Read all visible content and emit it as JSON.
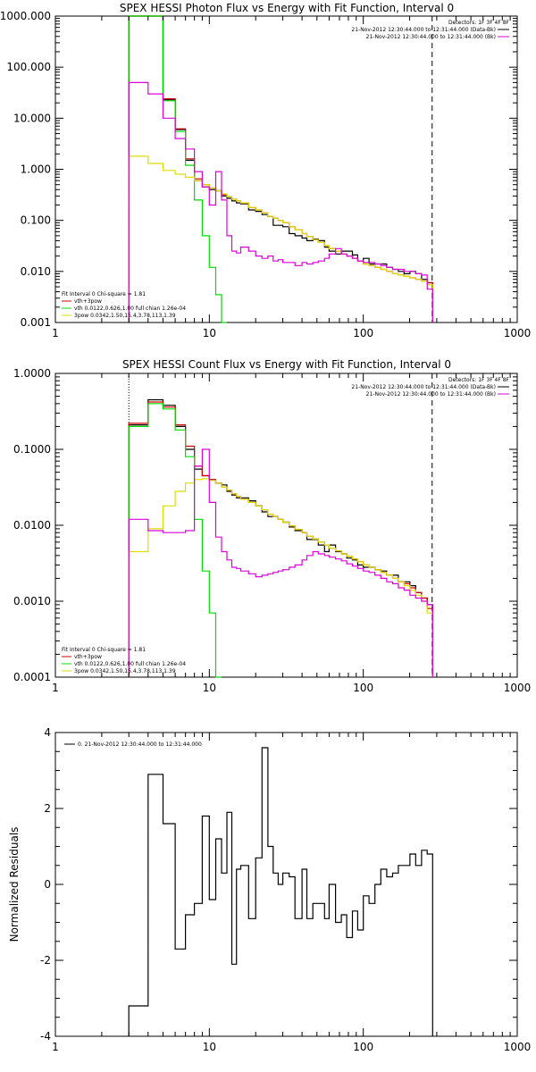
{
  "chart_data": [
    {
      "type": "line",
      "title": "SPEX HESSI Photon Flux vs Energy with Fit Function, Interval 0",
      "xscale": "log",
      "yscale": "log",
      "xlim": [
        1,
        1000
      ],
      "ylim": [
        0.001,
        1000
      ],
      "xticks": [
        "1",
        "10",
        "100",
        "1000"
      ],
      "yticks": [
        "1000.000",
        "100.000",
        "10.000",
        "1.000",
        "0.100",
        "0.010",
        "0.001"
      ],
      "vlines": [
        {
          "x": 3,
          "style": "dotted",
          "color": "#000000"
        },
        {
          "x": 280,
          "style": "dashed",
          "color": "#000000"
        }
      ],
      "legend_top_right": [
        "Detectors: 1F 3F 4F 8F",
        "21-Nov-2012 12:30:44.000 to 12:31:44.000 (Data-Bk)",
        "21-Nov-2012 12:30:44.000 to 12:31:44.000 (Bk)"
      ],
      "legend_bottom_left": [
        "Fit Interval 0   Chi-square = 1.81",
        "vth+3pow",
        "vth 0.0122,0.626,1.00  full chian 1.26e-04",
        "3pow 0.0342,1.50,15.4,3.78,113,1.39"
      ],
      "edges": [
        3,
        4,
        5,
        6,
        7,
        8,
        9,
        10,
        11,
        12,
        13,
        14,
        15,
        16,
        18,
        20,
        22,
        24,
        26,
        28,
        30,
        33,
        36,
        40,
        43,
        47,
        51,
        56,
        60,
        66,
        72,
        78,
        85,
        92,
        100,
        109,
        119,
        130,
        142,
        155,
        169,
        184,
        201,
        219,
        239,
        260,
        282
      ],
      "series": [
        {
          "name": "Data-Bk",
          "color": "#000000",
          "values": [
            1000,
            1000,
            23,
            6,
            1.5,
            0.6,
            0.45,
            0.4,
            0.38,
            0.3,
            0.27,
            0.24,
            0.22,
            0.21,
            0.16,
            0.15,
            0.13,
            0.12,
            0.08,
            0.08,
            0.075,
            0.055,
            0.05,
            0.045,
            0.04,
            0.043,
            0.04,
            0.03,
            0.025,
            0.022,
            0.025,
            0.025,
            0.021,
            0.016,
            0.018,
            0.014,
            0.014,
            0.014,
            0.012,
            0.011,
            0.01,
            0.009,
            0.01,
            0.009,
            0.007,
            0.006
          ]
        },
        {
          "name": "vth+3pow",
          "color": "#d00000",
          "values": [
            1000,
            1000,
            24,
            6.2,
            1.6,
            0.65,
            0.5,
            0.43,
            0.38,
            0.32,
            0.29,
            0.26,
            0.24,
            0.22,
            0.18,
            0.16,
            0.14,
            0.12,
            0.11,
            0.1,
            0.09,
            0.075,
            0.065,
            0.055,
            0.048,
            0.042,
            0.037,
            0.032,
            0.028,
            0.025,
            0.022,
            0.02,
            0.018,
            0.016,
            0.014,
            0.013,
            0.012,
            0.011,
            0.01,
            0.009,
            0.0085,
            0.008,
            0.0075,
            0.007,
            0.0065,
            0.006
          ]
        },
        {
          "name": "vth",
          "color": "#00dd00",
          "values": [
            1000,
            1000,
            22,
            5.5,
            1.2,
            0.25,
            0.05,
            0.012,
            0.0035,
            0.0009
          ]
        },
        {
          "name": "3pow",
          "color": "#dddd00",
          "values": [
            1.8,
            1.3,
            0.95,
            0.8,
            0.7,
            0.6,
            0.5,
            0.43,
            0.38,
            0.33,
            0.29,
            0.26,
            0.24,
            0.22,
            0.18,
            0.16,
            0.14,
            0.12,
            0.11,
            0.1,
            0.09,
            0.075,
            0.065,
            0.055,
            0.048,
            0.042,
            0.037,
            0.032,
            0.028,
            0.025,
            0.022,
            0.02,
            0.018,
            0.016,
            0.014,
            0.013,
            0.012,
            0.011,
            0.01,
            0.009,
            0.0085,
            0.008,
            0.0075,
            0.007,
            0.0065,
            0.0055
          ]
        },
        {
          "name": "Bk",
          "color": "#dd00dd",
          "values": [
            50,
            30,
            10,
            4,
            2.5,
            0.9,
            0.45,
            0.2,
            0.9,
            0.25,
            0.05,
            0.025,
            0.023,
            0.03,
            0.025,
            0.02,
            0.018,
            0.02,
            0.016,
            0.017,
            0.015,
            0.015,
            0.013,
            0.015,
            0.014,
            0.015,
            0.016,
            0.018,
            0.022,
            0.028,
            0.022,
            0.02,
            0.018,
            0.016,
            0.015,
            0.015,
            0.014,
            0.013,
            0.012,
            0.011,
            0.011,
            0.01,
            0.01,
            0.009,
            0.0085,
            0.0045
          ]
        }
      ]
    },
    {
      "type": "line",
      "title": "SPEX HESSI Count Flux vs Energy with Fit Function, Interval 0",
      "xscale": "log",
      "yscale": "log",
      "xlim": [
        1,
        1000
      ],
      "ylim": [
        0.0001,
        1
      ],
      "xticks": [
        "1",
        "10",
        "100",
        "1000"
      ],
      "yticks": [
        "1.0000",
        "0.1000",
        "0.0100",
        "0.0010",
        "0.0001"
      ],
      "vlines": [
        {
          "x": 3,
          "style": "dotted",
          "color": "#000000"
        },
        {
          "x": 280,
          "style": "dashed",
          "color": "#000000"
        }
      ],
      "legend_top_right": [
        "Detectors: 1F 3F 4F 8F",
        "21-Nov-2012 12:30:44.000 to 12:31:44.000 (Data-Bk)",
        "21-Nov-2012 12:30:44.000 to 12:31:44.000 (Bk)"
      ],
      "legend_bottom_left": [
        "Fit Interval 0   Chi-square = 1.81",
        "vth+3pow",
        "vth 0.0122,0.626,1.00  full chian 1.26e-04",
        "3pow 0.0342,1.50,15.4,3.78,113,1.39"
      ],
      "edges": [
        3,
        4,
        5,
        6,
        7,
        8,
        9,
        10,
        11,
        12,
        13,
        14,
        15,
        16,
        18,
        20,
        22,
        24,
        26,
        28,
        30,
        33,
        36,
        40,
        43,
        47,
        51,
        56,
        60,
        66,
        72,
        78,
        85,
        92,
        100,
        109,
        119,
        130,
        142,
        155,
        169,
        184,
        201,
        219,
        239,
        260,
        282
      ],
      "series": [
        {
          "name": "Data-Bk",
          "color": "#000000",
          "values": [
            0.21,
            0.45,
            0.38,
            0.2,
            0.1,
            0.055,
            0.045,
            0.04,
            0.036,
            0.034,
            0.028,
            0.025,
            0.023,
            0.023,
            0.021,
            0.018,
            0.015,
            0.013,
            0.013,
            0.012,
            0.011,
            0.0095,
            0.0085,
            0.008,
            0.0065,
            0.0065,
            0.0055,
            0.0045,
            0.0055,
            0.0045,
            0.0042,
            0.0037,
            0.0035,
            0.003,
            0.0028,
            0.0028,
            0.0026,
            0.0025,
            0.0022,
            0.0022,
            0.0018,
            0.0018,
            0.0016,
            0.0013,
            0.0011,
            0.0009
          ]
        },
        {
          "name": "vth+3pow",
          "color": "#d00000",
          "values": [
            0.22,
            0.42,
            0.36,
            0.21,
            0.11,
            0.06,
            0.045,
            0.04,
            0.036,
            0.032,
            0.029,
            0.026,
            0.024,
            0.022,
            0.02,
            0.018,
            0.016,
            0.014,
            0.013,
            0.012,
            0.011,
            0.0098,
            0.0088,
            0.008,
            0.0072,
            0.0066,
            0.006,
            0.0055,
            0.005,
            0.0046,
            0.0042,
            0.0039,
            0.0036,
            0.0033,
            0.003,
            0.0028,
            0.0026,
            0.0024,
            0.0022,
            0.002,
            0.0018,
            0.0017,
            0.0015,
            0.0013,
            0.0011,
            0.0008
          ]
        },
        {
          "name": "vth",
          "color": "#00dd00",
          "values": [
            0.2,
            0.4,
            0.34,
            0.18,
            0.08,
            0.012,
            0.0025,
            0.0007,
            0.0001
          ]
        },
        {
          "name": "3pow",
          "color": "#dddd00",
          "values": [
            0.0045,
            0.009,
            0.018,
            0.028,
            0.036,
            0.04,
            0.041,
            0.039,
            0.036,
            0.032,
            0.029,
            0.026,
            0.024,
            0.022,
            0.02,
            0.018,
            0.016,
            0.014,
            0.013,
            0.012,
            0.011,
            0.0098,
            0.0088,
            0.008,
            0.0072,
            0.0066,
            0.006,
            0.0055,
            0.005,
            0.0046,
            0.0042,
            0.0039,
            0.0036,
            0.0033,
            0.003,
            0.0028,
            0.0026,
            0.0024,
            0.0022,
            0.002,
            0.0018,
            0.0016,
            0.0014,
            0.0012,
            0.001,
            0.0007
          ]
        },
        {
          "name": "Bk",
          "color": "#dd00dd",
          "values": [
            0.012,
            0.0085,
            0.008,
            0.008,
            0.0085,
            0.06,
            0.1,
            0.02,
            0.007,
            0.0045,
            0.0035,
            0.0028,
            0.0027,
            0.0025,
            0.0023,
            0.0021,
            0.0022,
            0.0023,
            0.0024,
            0.0025,
            0.0026,
            0.0028,
            0.003,
            0.0035,
            0.004,
            0.0045,
            0.0042,
            0.004,
            0.0038,
            0.0036,
            0.0034,
            0.0031,
            0.0029,
            0.0027,
            0.0025,
            0.0024,
            0.0022,
            0.002,
            0.0018,
            0.0017,
            0.0015,
            0.0014,
            0.0012,
            0.0011,
            0.001,
            0.0009
          ]
        }
      ]
    },
    {
      "type": "line",
      "title": "",
      "ylabel": "Normalized Residuals",
      "xscale": "log",
      "yscale": "linear",
      "xlim": [
        1,
        1000
      ],
      "ylim": [
        -4,
        4
      ],
      "xticks": [
        "1",
        "10",
        "100",
        "1000"
      ],
      "yticks": [
        "4",
        "2",
        "0",
        "-2",
        "-4"
      ],
      "legend_top_left": [
        "0. 21-Nov-2012 12:30:44.000 to 12:31:44.000"
      ],
      "edges": [
        3,
        4,
        5,
        6,
        7,
        8,
        9,
        10,
        11,
        12,
        13,
        14,
        15,
        16,
        18,
        20,
        22,
        24,
        26,
        28,
        30,
        33,
        36,
        40,
        43,
        47,
        51,
        56,
        60,
        66,
        72,
        78,
        85,
        92,
        100,
        109,
        119,
        130,
        142,
        155,
        169,
        184,
        201,
        219,
        239,
        260,
        282
      ],
      "series": [
        {
          "name": "0. 21-Nov-2012 12:30:44.000 to 12:31:44.000",
          "color": "#000000",
          "values": [
            -3.2,
            2.9,
            1.6,
            -1.7,
            -0.8,
            -0.5,
            1.8,
            -0.4,
            1.2,
            0.3,
            1.9,
            -2.1,
            0.4,
            0.5,
            -0.9,
            0.7,
            3.6,
            1.0,
            0.3,
            0.0,
            0.3,
            0.2,
            -0.9,
            0.4,
            -0.9,
            -0.5,
            -0.5,
            -0.9,
            0.0,
            -1.0,
            -0.8,
            -1.4,
            -0.7,
            -1.2,
            -0.3,
            -0.5,
            0.0,
            0.4,
            0.2,
            0.3,
            0.5,
            0.5,
            0.8,
            0.5,
            0.9,
            0.8
          ]
        }
      ]
    }
  ]
}
